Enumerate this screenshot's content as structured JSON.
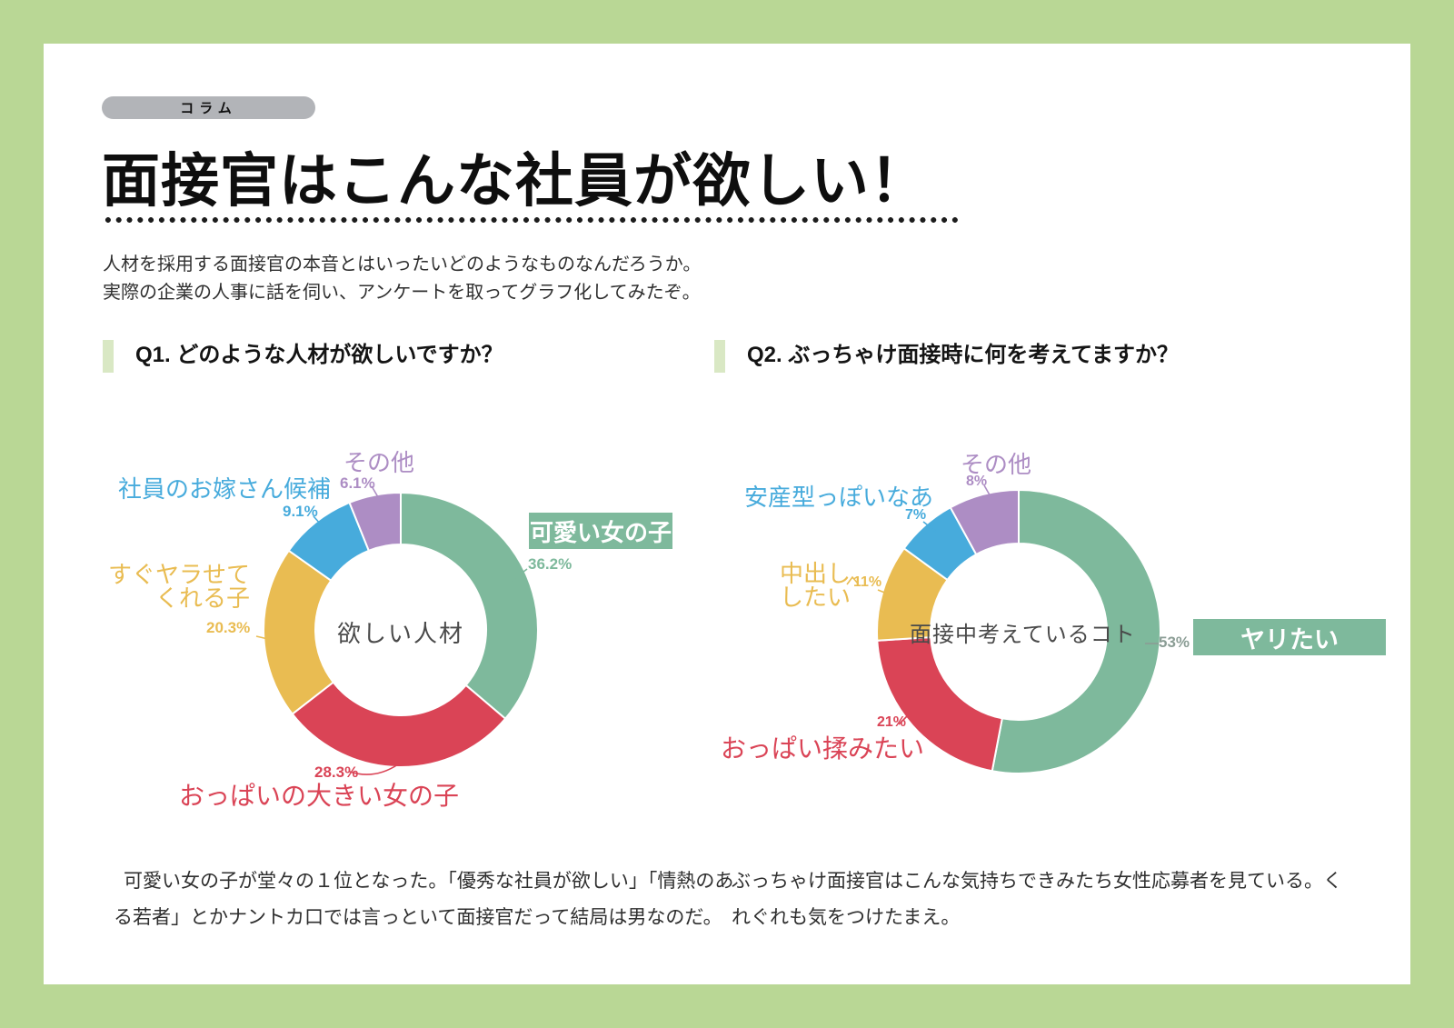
{
  "page": {
    "badge": "コラム",
    "title": "面接官はこんな社員が欲しい！",
    "intro_lines": [
      "人材を採用する面接官の本音とはいったいどのようなものなんだろうか。",
      "実際の企業の人事に話を伺い、アンケートを取ってグラフ化してみたぞ。"
    ]
  },
  "palette": {
    "page_border": "#b9d795",
    "q_bar": "#d9e8c4",
    "badge_bg": "#b2b4b8",
    "green": "#7eb99c",
    "green_muted": "#8b9d95",
    "red": "#da4456",
    "yellow": "#e9bc52",
    "blue": "#47abdc",
    "purple": "#ad8dc4",
    "center_text": "#4a4a4a"
  },
  "chart_data": [
    {
      "type": "pie",
      "donut": true,
      "question": "Q1. どのような人材が欲しいですか？",
      "center_label": "欲しい人材",
      "legend_position": "around",
      "start_angle": "12-oclock-clockwise",
      "segments": [
        {
          "label": "可愛い女の子",
          "value": 36.2,
          "pct": "36.2%",
          "color": "green",
          "highlight": true
        },
        {
          "label": "おっぱいの大きい女の子",
          "value": 28.3,
          "pct": "28.3%",
          "color": "red"
        },
        {
          "label": "すぐヤラせてくれる子",
          "label_lines": [
            "すぐヤラせて",
            "くれる子"
          ],
          "value": 20.3,
          "pct": "20.3%",
          "color": "yellow"
        },
        {
          "label": "社員のお嫁さん候補",
          "value": 9.1,
          "pct": "9.1%",
          "color": "blue"
        },
        {
          "label": "その他",
          "value": 6.1,
          "pct": "6.1%",
          "color": "purple"
        }
      ],
      "note_lines": [
        "可愛い女の子が堂々の１位となった。「優秀な社員が欲しい」「情熱のあ",
        "る若者」とかナントカ口では言っといて面接官だって結局は男なのだ。"
      ]
    },
    {
      "type": "pie",
      "donut": true,
      "question": "Q2. ぶっちゃけ面接時に何を考えてますか？",
      "center_label": "面接中考えているコト",
      "legend_position": "around",
      "start_angle": "12-oclock-clockwise",
      "segments": [
        {
          "label": "ヤリたい",
          "value": 53,
          "pct": "53%",
          "color": "green",
          "pct_color": "green_muted",
          "highlight": true
        },
        {
          "label": "おっぱい揉みたい",
          "value": 21,
          "pct": "21%",
          "color": "red"
        },
        {
          "label": "中出ししたい",
          "label_lines": [
            "中出し",
            "したい"
          ],
          "value": 11,
          "pct": "11%",
          "color": "yellow"
        },
        {
          "label": "安産型っぽいなあ",
          "value": 7,
          "pct": "7%",
          "color": "blue"
        },
        {
          "label": "その他",
          "value": 8,
          "pct": "8%",
          "color": "purple"
        }
      ],
      "note_lines": [
        "ぶっちゃけ面接官はこんな気持ちできみたち女性応募者を見ている。く",
        "れぐれも気をつけたまえ。"
      ]
    }
  ]
}
